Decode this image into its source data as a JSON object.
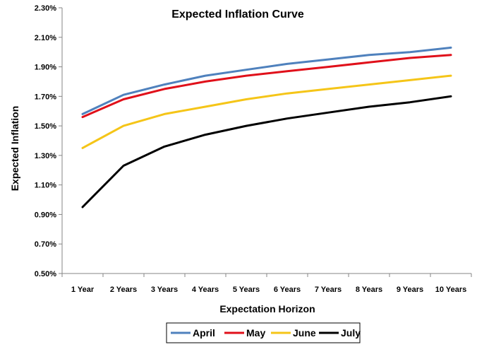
{
  "chart_data": {
    "type": "line",
    "title": "Expected Inflation Curve",
    "xlabel": "Expectation Horizon",
    "ylabel": "Expected Inflation",
    "categories": [
      "1 Year",
      "2 Years",
      "3 Years",
      "4 Years",
      "5 Years",
      "6 Years",
      "7 Years",
      "8 Years",
      "9 Years",
      "10 Years"
    ],
    "ylim": [
      0.5,
      2.3
    ],
    "yticks": [
      "0.50%",
      "0.70%",
      "0.90%",
      "1.10%",
      "1.30%",
      "1.50%",
      "1.70%",
      "1.90%",
      "2.10%",
      "2.30%"
    ],
    "ytick_values": [
      0.5,
      0.7,
      0.9,
      1.1,
      1.3,
      1.5,
      1.7,
      1.9,
      2.1,
      2.3
    ],
    "grid": false,
    "legend_position": "bottom",
    "series": [
      {
        "name": "April",
        "color": "#4f81bd",
        "values": [
          1.58,
          1.71,
          1.78,
          1.84,
          1.88,
          1.92,
          1.95,
          1.98,
          2.0,
          2.03
        ]
      },
      {
        "name": "May",
        "color": "#e0101a",
        "values": [
          1.56,
          1.68,
          1.75,
          1.8,
          1.84,
          1.87,
          1.9,
          1.93,
          1.96,
          1.98
        ]
      },
      {
        "name": "June",
        "color": "#f5c518",
        "values": [
          1.35,
          1.5,
          1.58,
          1.63,
          1.68,
          1.72,
          1.75,
          1.78,
          1.81,
          1.84
        ]
      },
      {
        "name": "July",
        "color": "#000000",
        "values": [
          0.95,
          1.23,
          1.36,
          1.44,
          1.5,
          1.55,
          1.59,
          1.63,
          1.66,
          1.7
        ]
      }
    ]
  }
}
